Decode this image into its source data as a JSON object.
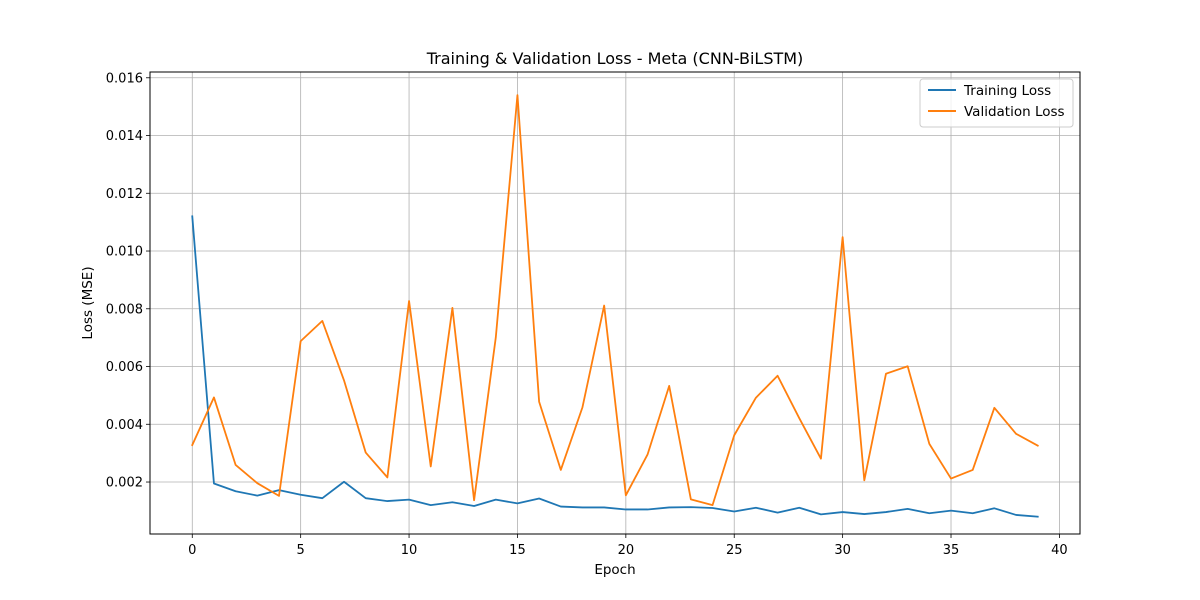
{
  "chart_data": {
    "type": "line",
    "title": "Training & Validation Loss - Meta (CNN-BiLSTM)",
    "xlabel": "Epoch",
    "ylabel": "Loss (MSE)",
    "xlim": [
      -1.95,
      40.95
    ],
    "ylim": [
      0.0002,
      0.0162
    ],
    "x_ticks": [
      0,
      5,
      10,
      15,
      20,
      25,
      30,
      35,
      40
    ],
    "y_ticks": [
      0.002,
      0.004,
      0.006,
      0.008,
      0.01,
      0.012,
      0.014,
      0.016
    ],
    "y_tick_labels": [
      "0.002",
      "0.004",
      "0.006",
      "0.008",
      "0.010",
      "0.012",
      "0.014",
      "0.016"
    ],
    "grid": true,
    "legend_position": "top-right",
    "x": [
      0,
      1,
      2,
      3,
      4,
      5,
      6,
      7,
      8,
      9,
      10,
      11,
      12,
      13,
      14,
      15,
      16,
      17,
      18,
      19,
      20,
      21,
      22,
      23,
      24,
      25,
      26,
      27,
      28,
      29,
      30,
      31,
      32,
      33,
      34,
      35,
      36,
      37,
      38,
      39
    ],
    "series": [
      {
        "name": "Training Loss",
        "color": "#1f77b4",
        "values": [
          0.0112,
          0.00195,
          0.00168,
          0.00153,
          0.00172,
          0.00156,
          0.00144,
          0.00201,
          0.00144,
          0.00134,
          0.00139,
          0.0012,
          0.0013,
          0.00117,
          0.00139,
          0.00126,
          0.00143,
          0.00115,
          0.00112,
          0.00112,
          0.00105,
          0.00105,
          0.00112,
          0.00113,
          0.0011,
          0.00098,
          0.00111,
          0.00094,
          0.00111,
          0.00088,
          0.00096,
          0.00089,
          0.00096,
          0.00107,
          0.00092,
          0.00101,
          0.00092,
          0.00109,
          0.00086,
          0.0008
        ]
      },
      {
        "name": "Validation Loss",
        "color": "#ff7f0e",
        "values": [
          0.00328,
          0.00493,
          0.00259,
          0.00196,
          0.00152,
          0.00688,
          0.00758,
          0.00552,
          0.00302,
          0.00216,
          0.00827,
          0.00254,
          0.00803,
          0.00137,
          0.007,
          0.0154,
          0.00478,
          0.00242,
          0.00459,
          0.00811,
          0.00154,
          0.00295,
          0.00533,
          0.0014,
          0.0012,
          0.00362,
          0.00492,
          0.00568,
          0.00421,
          0.00281,
          0.01048,
          0.00206,
          0.00575,
          0.00601,
          0.00332,
          0.00212,
          0.00242,
          0.00457,
          0.00367,
          0.00326
        ]
      }
    ]
  }
}
